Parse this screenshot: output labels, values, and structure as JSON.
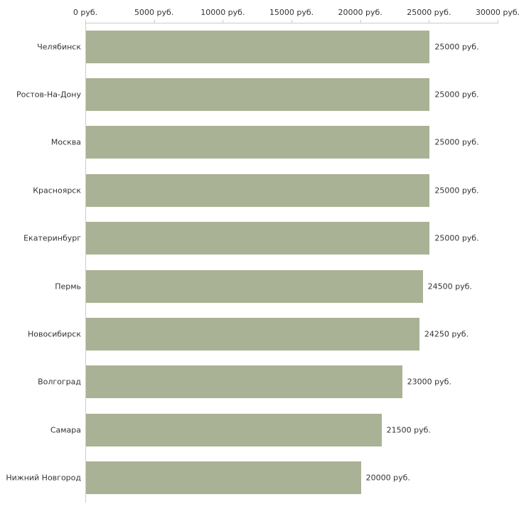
{
  "chart_data": {
    "type": "bar",
    "orientation": "horizontal",
    "title": "",
    "xlabel": "",
    "ylabel": "",
    "categories": [
      "Челябинск",
      "Ростов-На-Дону",
      "Москва",
      "Красноярск",
      "Екатеринбург",
      "Пермь",
      "Новосибирск",
      "Волгоград",
      "Самара",
      "Нижний Новгород"
    ],
    "values": [
      25000,
      25000,
      25000,
      25000,
      25000,
      24500,
      24250,
      23000,
      21500,
      20000
    ],
    "value_labels": [
      "25000 руб.",
      "25000 руб.",
      "25000 руб.",
      "25000 руб.",
      "25000 руб.",
      "24500 руб.",
      "24250 руб.",
      "23000 руб.",
      "21500 руб.",
      "20000 руб."
    ],
    "x_ticks": [
      0,
      5000,
      10000,
      15000,
      20000,
      25000,
      30000
    ],
    "x_tick_labels": [
      "0 руб.",
      "5000 руб.",
      "10000 руб.",
      "15000 руб.",
      "20000 руб.",
      "25000 руб.",
      "30000 руб."
    ],
    "xlim": [
      0,
      30000
    ],
    "grid": false,
    "legend": false,
    "colors": {
      "bar": "#a9b294",
      "axis": "#cccccc",
      "text": "#333333",
      "background": "#ffffff"
    }
  }
}
